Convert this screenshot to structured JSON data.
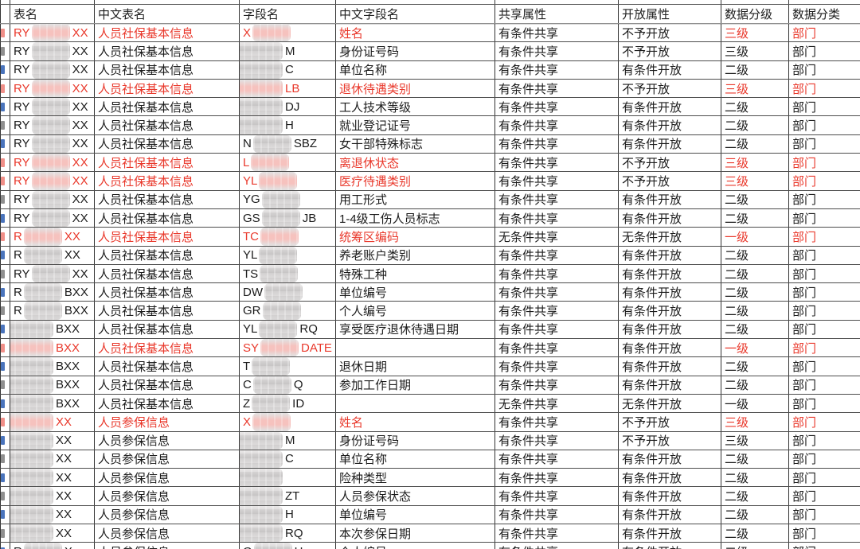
{
  "colors": {
    "red_text": "#e9392c",
    "grid_line": "#333333",
    "redaction_gray": "#d2d0d0",
    "redaction_pink": "#f6c2be"
  },
  "table": {
    "headers": [
      "表名",
      "中文表名",
      "字段名",
      "中文字段名",
      "共享属性",
      "开放属性",
      "数据分级",
      "数据分类"
    ],
    "rows": [
      {
        "red": true,
        "tbl_prefix": "RY",
        "tbl_suffix": "XX",
        "table_cn": "人员社保基本信息",
        "fld_prefix": "X",
        "fld_suffix": "",
        "field_cn": "姓名",
        "share": "有条件共享",
        "open": "不予开放",
        "level": "三级",
        "category": "部门"
      },
      {
        "red": false,
        "tbl_prefix": "RY",
        "tbl_suffix": "XX",
        "table_cn": "人员社保基本信息",
        "fld_prefix": "",
        "fld_suffix": "M",
        "field_cn": "身份证号码",
        "share": "有条件共享",
        "open": "不予开放",
        "level": "三级",
        "category": "部门"
      },
      {
        "red": false,
        "tbl_prefix": "RY",
        "tbl_suffix": "XX",
        "table_cn": "人员社保基本信息",
        "fld_prefix": "",
        "fld_suffix": "C",
        "field_cn": "单位名称",
        "share": "有条件共享",
        "open": "有条件开放",
        "level": "二级",
        "category": "部门"
      },
      {
        "red": true,
        "tbl_prefix": "RY",
        "tbl_suffix": "XX",
        "table_cn": "人员社保基本信息",
        "fld_prefix": "",
        "fld_suffix": "LB",
        "field_cn": "退休待遇类别",
        "share": "有条件共享",
        "open": "不予开放",
        "level": "三级",
        "category": "部门"
      },
      {
        "red": false,
        "tbl_prefix": "RY",
        "tbl_suffix": "XX",
        "table_cn": "人员社保基本信息",
        "fld_prefix": "",
        "fld_suffix": "DJ",
        "field_cn": "工人技术等级",
        "share": "有条件共享",
        "open": "有条件开放",
        "level": "二级",
        "category": "部门"
      },
      {
        "red": false,
        "tbl_prefix": "RY",
        "tbl_suffix": "XX",
        "table_cn": "人员社保基本信息",
        "fld_prefix": "",
        "fld_suffix": "H",
        "field_cn": "就业登记证号",
        "share": "有条件共享",
        "open": "有条件开放",
        "level": "二级",
        "category": "部门"
      },
      {
        "red": false,
        "tbl_prefix": "RY",
        "tbl_suffix": "XX",
        "table_cn": "人员社保基本信息",
        "fld_prefix": "N",
        "fld_suffix": "SBZ",
        "field_cn": "女干部特殊标志",
        "share": "有条件共享",
        "open": "有条件开放",
        "level": "二级",
        "category": "部门"
      },
      {
        "red": true,
        "tbl_prefix": "RY",
        "tbl_suffix": "XX",
        "table_cn": "人员社保基本信息",
        "fld_prefix": "L",
        "fld_suffix": "",
        "field_cn": "离退休状态",
        "share": "有条件共享",
        "open": "不予开放",
        "level": "三级",
        "category": "部门"
      },
      {
        "red": true,
        "tbl_prefix": "RY",
        "tbl_suffix": "XX",
        "table_cn": "人员社保基本信息",
        "fld_prefix": "YL",
        "fld_suffix": "",
        "field_cn": "医疗待遇类别",
        "share": "有条件共享",
        "open": "不予开放",
        "level": "三级",
        "category": "部门"
      },
      {
        "red": false,
        "tbl_prefix": "RY",
        "tbl_suffix": "XX",
        "table_cn": "人员社保基本信息",
        "fld_prefix": "YG",
        "fld_suffix": "",
        "field_cn": "用工形式",
        "share": "有条件共享",
        "open": "有条件开放",
        "level": "二级",
        "category": "部门"
      },
      {
        "red": false,
        "tbl_prefix": "RY",
        "tbl_suffix": "XX",
        "table_cn": "人员社保基本信息",
        "fld_prefix": "GS",
        "fld_suffix": "JB",
        "field_cn": "1-4级工伤人员标志",
        "share": "有条件共享",
        "open": "有条件开放",
        "level": "二级",
        "category": "部门"
      },
      {
        "red": true,
        "tbl_prefix": "R",
        "tbl_suffix": "XX",
        "table_cn": "人员社保基本信息",
        "fld_prefix": "TC",
        "fld_suffix": "",
        "field_cn": "统筹区编码",
        "share": "无条件共享",
        "open": "无条件开放",
        "level": "一级",
        "category": "部门"
      },
      {
        "red": false,
        "tbl_prefix": "R",
        "tbl_suffix": "XX",
        "table_cn": "人员社保基本信息",
        "fld_prefix": "YL",
        "fld_suffix": "",
        "field_cn": "养老账户类别",
        "share": "有条件共享",
        "open": "有条件开放",
        "level": "二级",
        "category": "部门"
      },
      {
        "red": false,
        "tbl_prefix": "RY",
        "tbl_suffix": "XX",
        "table_cn": "人员社保基本信息",
        "fld_prefix": "TS",
        "fld_suffix": "",
        "field_cn": "特殊工种",
        "share": "有条件共享",
        "open": "有条件开放",
        "level": "二级",
        "category": "部门"
      },
      {
        "red": false,
        "tbl_prefix": "R",
        "tbl_suffix": "BXX",
        "table_cn": "人员社保基本信息",
        "fld_prefix": "DW",
        "fld_suffix": "",
        "field_cn": "单位编号",
        "share": "有条件共享",
        "open": "有条件开放",
        "level": "二级",
        "category": "部门"
      },
      {
        "red": false,
        "tbl_prefix": "R",
        "tbl_suffix": "BXX",
        "table_cn": "人员社保基本信息",
        "fld_prefix": "GR",
        "fld_suffix": "",
        "field_cn": "个人编号",
        "share": "有条件共享",
        "open": "有条件开放",
        "level": "二级",
        "category": "部门"
      },
      {
        "red": false,
        "tbl_prefix": "",
        "tbl_suffix": "BXX",
        "table_cn": "人员社保基本信息",
        "fld_prefix": "YL",
        "fld_suffix": "RQ",
        "field_cn": "享受医疗退休待遇日期",
        "share": "有条件共享",
        "open": "有条件开放",
        "level": "二级",
        "category": "部门"
      },
      {
        "red": true,
        "tbl_prefix": "",
        "tbl_suffix": "BXX",
        "table_cn": "人员社保基本信息",
        "fld_prefix": "SY",
        "fld_suffix": "DATE",
        "field_cn": "",
        "share": "有条件共享",
        "open": "有条件开放",
        "level": "一级",
        "category": "部门"
      },
      {
        "red": false,
        "tbl_prefix": "",
        "tbl_suffix": "BXX",
        "table_cn": "人员社保基本信息",
        "fld_prefix": "T",
        "fld_suffix": "",
        "field_cn": "退休日期",
        "share": "有条件共享",
        "open": "有条件开放",
        "level": "二级",
        "category": "部门"
      },
      {
        "red": false,
        "tbl_prefix": "",
        "tbl_suffix": "BXX",
        "table_cn": "人员社保基本信息",
        "fld_prefix": "C",
        "fld_suffix": "Q",
        "field_cn": "参加工作日期",
        "share": "有条件共享",
        "open": "有条件开放",
        "level": "二级",
        "category": "部门"
      },
      {
        "red": false,
        "tbl_prefix": "",
        "tbl_suffix": "BXX",
        "table_cn": "人员社保基本信息",
        "fld_prefix": "Z",
        "fld_suffix": "ID",
        "field_cn": "",
        "share": "无条件共享",
        "open": "无条件开放",
        "level": "一级",
        "category": "部门"
      },
      {
        "red": true,
        "tbl_prefix": "",
        "tbl_suffix": "XX",
        "table_cn": "人员参保信息",
        "fld_prefix": "X",
        "fld_suffix": "",
        "field_cn": "姓名",
        "share": "有条件共享",
        "open": "不予开放",
        "level": "三级",
        "category": "部门"
      },
      {
        "red": false,
        "tbl_prefix": "",
        "tbl_suffix": "XX",
        "table_cn": "人员参保信息",
        "fld_prefix": "",
        "fld_suffix": "M",
        "field_cn": "身份证号码",
        "share": "有条件共享",
        "open": "不予开放",
        "level": "三级",
        "category": "部门"
      },
      {
        "red": false,
        "tbl_prefix": "",
        "tbl_suffix": "XX",
        "table_cn": "人员参保信息",
        "fld_prefix": "",
        "fld_suffix": "C",
        "field_cn": "单位名称",
        "share": "有条件共享",
        "open": "有条件开放",
        "level": "二级",
        "category": "部门"
      },
      {
        "red": false,
        "tbl_prefix": "",
        "tbl_suffix": "XX",
        "table_cn": "人员参保信息",
        "fld_prefix": "",
        "fld_suffix": "",
        "field_cn": "险种类型",
        "share": "有条件共享",
        "open": "有条件开放",
        "level": "二级",
        "category": "部门"
      },
      {
        "red": false,
        "tbl_prefix": "",
        "tbl_suffix": "XX",
        "table_cn": "人员参保信息",
        "fld_prefix": "",
        "fld_suffix": "ZT",
        "field_cn": "人员参保状态",
        "share": "有条件共享",
        "open": "有条件开放",
        "level": "二级",
        "category": "部门"
      },
      {
        "red": false,
        "tbl_prefix": "",
        "tbl_suffix": "XX",
        "table_cn": "人员参保信息",
        "fld_prefix": "",
        "fld_suffix": "H",
        "field_cn": "单位编号",
        "share": "有条件共享",
        "open": "有条件开放",
        "level": "二级",
        "category": "部门"
      },
      {
        "red": false,
        "tbl_prefix": "",
        "tbl_suffix": "XX",
        "table_cn": "人员参保信息",
        "fld_prefix": "",
        "fld_suffix": "RQ",
        "field_cn": "本次参保日期",
        "share": "有条件共享",
        "open": "有条件开放",
        "level": "二级",
        "category": "部门"
      },
      {
        "red": false,
        "tbl_prefix": "R",
        "tbl_suffix": "X",
        "table_cn": "人员参保信息",
        "fld_prefix": "G",
        "fld_suffix": "H",
        "field_cn": "个人编号",
        "share": "有条件共享",
        "open": "有条件开放",
        "level": "二级",
        "category": "部门"
      }
    ]
  }
}
